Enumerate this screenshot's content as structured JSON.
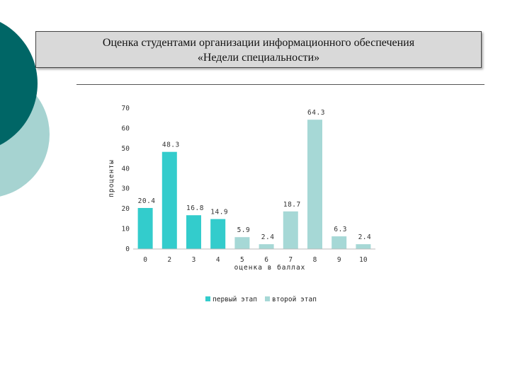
{
  "slide": {
    "title_line1": "Оценка студентами организации информационного обеспечения",
    "title_line2": "«Недели специальности»"
  },
  "chart_data": {
    "type": "bar",
    "ylabel": "проценты",
    "xlabel": "оценка в баллах",
    "ylim": [
      0,
      70
    ],
    "yticks": [
      0,
      10,
      20,
      30,
      40,
      50,
      60,
      70
    ],
    "categories": [
      "0",
      "2",
      "3",
      "4",
      "5",
      "6",
      "7",
      "8",
      "9",
      "10"
    ],
    "series": [
      {
        "name": "первый этап",
        "color": "#33cccc",
        "points": [
          {
            "category": "0",
            "value": 20.4
          },
          {
            "category": "2",
            "value": 48.3
          },
          {
            "category": "3",
            "value": 16.8
          },
          {
            "category": "4",
            "value": 14.9
          }
        ]
      },
      {
        "name": "второй этап",
        "color": "#a6d8d6",
        "points": [
          {
            "category": "5",
            "value": 5.9
          },
          {
            "category": "6",
            "value": 2.4
          },
          {
            "category": "7",
            "value": 18.7
          },
          {
            "category": "8",
            "value": 64.3
          },
          {
            "category": "9",
            "value": 6.3
          },
          {
            "category": "10",
            "value": 2.4
          }
        ]
      }
    ],
    "legend_position": "bottom",
    "grid": false
  }
}
